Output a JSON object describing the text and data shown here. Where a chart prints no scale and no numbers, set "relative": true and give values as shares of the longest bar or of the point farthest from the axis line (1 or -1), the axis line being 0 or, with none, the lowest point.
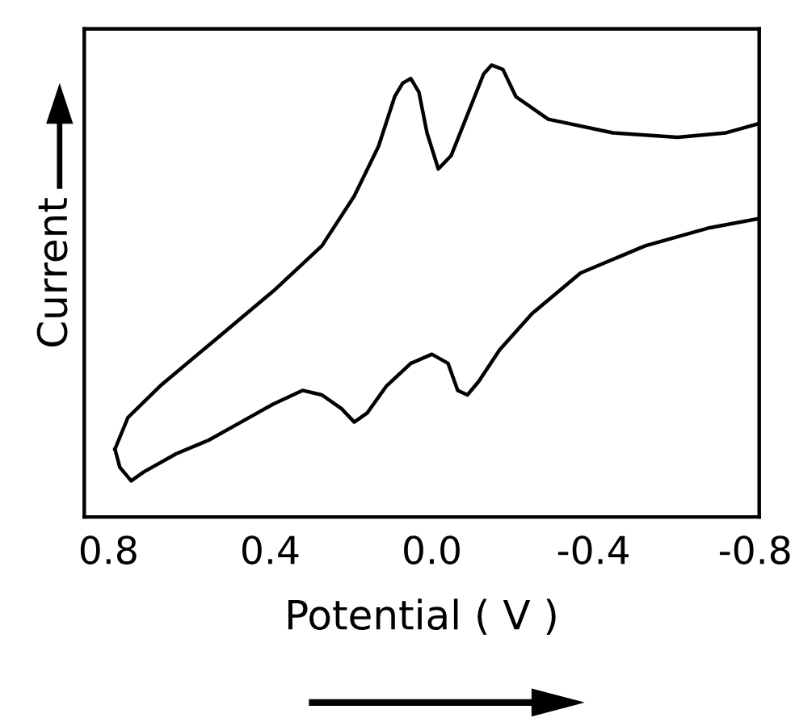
{
  "chart_data": {
    "type": "line",
    "xlabel": "Potential ( V )",
    "ylabel": "Current",
    "relative": true,
    "tick_labels": "x",
    "grid": false,
    "legend": false,
    "xlim": [
      0.86,
      -0.81
    ],
    "xticks": [
      0.8,
      0.4,
      {
        "value": 0,
        "label": "0.0"
      },
      -0.4,
      -0.8
    ],
    "series": [
      {
        "color": "#000000",
        "x": [
          0.784,
          0.752,
          0.672,
          0.552,
          0.392,
          0.272,
          0.192,
          0.132,
          0.092,
          0.072,
          0.052,
          0.032,
          0.012,
          -0.016,
          -0.048,
          -0.088,
          -0.128,
          -0.148,
          -0.176,
          -0.208,
          -0.288,
          -0.448,
          -0.608,
          -0.728,
          -0.808
        ],
        "values": [
          0.15,
          0.22,
          0.29,
          0.38,
          0.5,
          0.6,
          0.71,
          0.82,
          0.93,
          0.96,
          0.97,
          0.94,
          0.85,
          0.77,
          0.8,
          0.89,
          0.98,
          1.0,
          0.99,
          0.93,
          0.88,
          0.85,
          0.84,
          0.85,
          0.87
        ]
      },
      {
        "color": "#000000",
        "x": [
          -0.808,
          -0.688,
          -0.528,
          -0.368,
          -0.248,
          -0.168,
          -0.116,
          -0.088,
          -0.064,
          -0.04,
          0.0,
          0.052,
          0.112,
          0.16,
          0.192,
          0.224,
          0.272,
          0.32,
          0.392,
          0.472,
          0.552,
          0.632,
          0.712,
          0.744,
          0.772,
          0.784
        ],
        "values": [
          0.66,
          0.64,
          0.6,
          0.54,
          0.45,
          0.37,
          0.3,
          0.27,
          0.28,
          0.34,
          0.36,
          0.34,
          0.29,
          0.23,
          0.21,
          0.24,
          0.27,
          0.28,
          0.25,
          0.21,
          0.17,
          0.14,
          0.1,
          0.08,
          0.11,
          0.15
        ]
      }
    ]
  }
}
